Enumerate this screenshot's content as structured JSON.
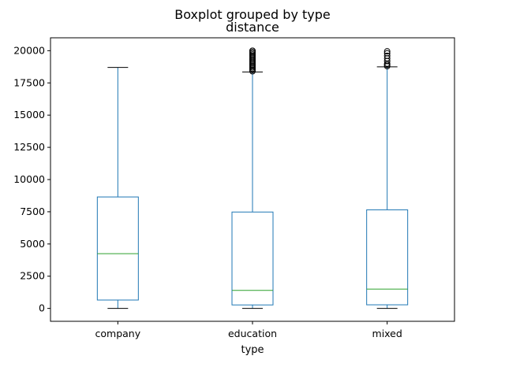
{
  "chart_data": {
    "type": "boxplot",
    "suptitle": "Boxplot grouped by type",
    "title": "distance",
    "xlabel": "type",
    "ylabel": "",
    "ylim": [
      -1000,
      21000
    ],
    "yticks": [
      0,
      2500,
      5000,
      7500,
      10000,
      12500,
      15000,
      17500,
      20000
    ],
    "grid": false,
    "colors": {
      "box": "#1f77b4",
      "median": "#2ca02c",
      "cap": "#000000",
      "flier": "#000000",
      "axes": "#000000"
    },
    "categories": [
      "company",
      "education",
      "mixed"
    ],
    "boxes": [
      {
        "name": "company",
        "whisker_low": 0,
        "q1": 650,
        "median": 4250,
        "q3": 8650,
        "whisker_high": 18700,
        "fliers": []
      },
      {
        "name": "education",
        "whisker_low": 0,
        "q1": 270,
        "median": 1400,
        "q3": 7480,
        "whisker_high": 18350,
        "fliers": [
          18400,
          18500,
          18600,
          18700,
          18800,
          18900,
          19000,
          19100,
          19200,
          19300,
          19400,
          19500,
          19600,
          19700,
          19800,
          19900,
          20000
        ]
      },
      {
        "name": "mixed",
        "whisker_low": 0,
        "q1": 280,
        "median": 1500,
        "q3": 7650,
        "whisker_high": 18750,
        "fliers": [
          18800,
          18900,
          19000,
          19200,
          19400,
          19600,
          19800,
          19950
        ]
      }
    ]
  }
}
